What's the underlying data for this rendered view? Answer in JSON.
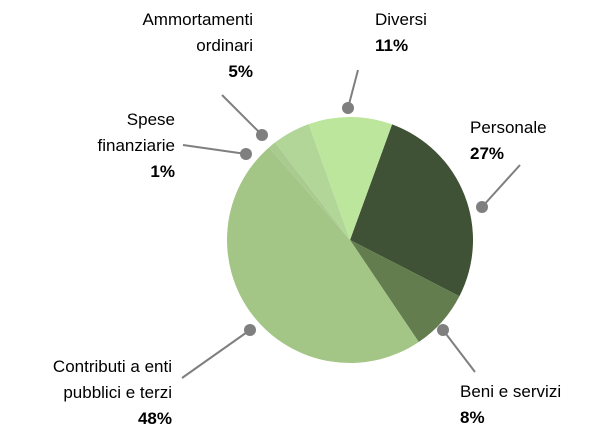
{
  "chart_data": {
    "type": "pie",
    "categories": [
      "Personale",
      "Beni e servizi",
      "Contributi a enti pubblici e terzi",
      "Spese finanziarie",
      "Ammortamenti ordinari",
      "Diversi"
    ],
    "values": [
      27,
      8,
      48,
      1,
      5,
      11
    ],
    "value_labels": [
      "27%",
      "8%",
      "48%",
      "1%",
      "5%",
      "11%"
    ],
    "colors": [
      "#3f5235",
      "#637d4f",
      "#a3c586",
      "#a9cb8f",
      "#b2d598",
      "#bde69d"
    ]
  }
}
